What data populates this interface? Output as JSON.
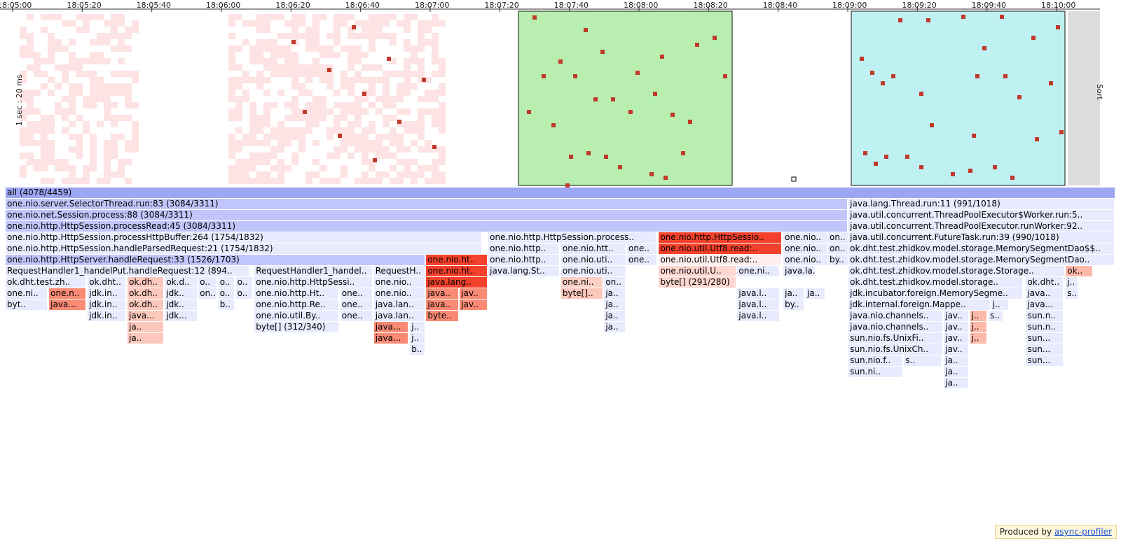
{
  "timeline": {
    "ticks": [
      {
        "label": "18:05:00",
        "t": 0
      },
      {
        "label": "18:05:20",
        "t": 20
      },
      {
        "label": "18:05:40",
        "t": 40
      },
      {
        "label": "18:06:00",
        "t": 60
      },
      {
        "label": "18:06:20",
        "t": 80
      },
      {
        "label": "18:06:40",
        "t": 100
      },
      {
        "label": "18:07:00",
        "t": 120
      },
      {
        "label": "18:07:20",
        "t": 140
      },
      {
        "label": "18:07:40",
        "t": 160
      },
      {
        "label": "18:08:00",
        "t": 180
      },
      {
        "label": "18:08:20",
        "t": 200
      },
      {
        "label": "18:08:40",
        "t": 220
      },
      {
        "label": "18:09:00",
        "t": 240
      },
      {
        "label": "18:09:20",
        "t": 260
      },
      {
        "label": "18:09:40",
        "t": 280
      },
      {
        "label": "18:10:00",
        "t": 300
      }
    ],
    "y_axis_label": "1 sec : 20 ms",
    "right_label": "Sort",
    "colors": {
      "pink_bg": "#fde3e3",
      "green_bg": "#b8eeb0",
      "cyan_bg": "#bff0f2",
      "gray_bg": "#dddddd",
      "hotspot": "#c0392b"
    }
  },
  "flame_rows": [
    [
      {
        "label": "all (4078/4459)",
        "s": 0,
        "w": 4459,
        "c": "#9da6f2"
      }
    ],
    [
      {
        "label": "one.nio.server.SelectorThread.run:83 (3084/3311)",
        "s": 0,
        "w": 3385,
        "c": "#c0c6fb"
      },
      {
        "label": "java.lang.Thread.run:11 (991/1018)",
        "s": 3387,
        "w": 1068,
        "c": "#e8ebfd"
      }
    ],
    [
      {
        "label": "one.nio.net.Session.process:88 (3084/3311)",
        "s": 0,
        "w": 3385,
        "c": "#c0c6fb"
      },
      {
        "label": "java.util.concurrent.ThreadPoolExecutor$Worker.run:5..",
        "s": 3387,
        "w": 1068,
        "c": "#e8ebfd"
      }
    ],
    [
      {
        "label": "one.nio.http.HttpSession.processRead:45 (3084/3311)",
        "s": 0,
        "w": 3385,
        "c": "#c0c6fb"
      },
      {
        "label": "java.util.concurrent.ThreadPoolExecutor.runWorker:92..",
        "s": 3387,
        "w": 1068,
        "c": "#e8ebfd"
      }
    ],
    [
      {
        "label": "one.nio.http.HttpSession.processHttpBuffer:264 (1754/1832)",
        "s": 0,
        "w": 1915,
        "c": "#e8ebfd"
      },
      {
        "label": "one.nio.http.HttpSession.process..",
        "s": 1940,
        "w": 675,
        "c": "#e8ebfd"
      },
      {
        "label": "one.nio.http.HttpSessio..",
        "s": 2625,
        "w": 494,
        "c": "#f4412b"
      },
      {
        "label": "one.nio..",
        "s": 3125,
        "w": 180,
        "c": "#e8ebfd"
      },
      {
        "label": "on..",
        "s": 3305,
        "w": 82,
        "c": "#e8ebfd"
      },
      {
        "label": "java.util.concurrent.FutureTask.run:39 (990/1018)",
        "s": 3387,
        "w": 1068,
        "c": "#e8ebfd"
      }
    ],
    [
      {
        "label": "one.nio.http.HttpSession.handleParsedRequest:21 (1754/1832)",
        "s": 0,
        "w": 1915,
        "c": "#e8ebfd"
      },
      {
        "label": "one.nio.http..",
        "s": 1940,
        "w": 288,
        "c": "#e8ebfd"
      },
      {
        "label": "one.nio.htt..",
        "s": 2232,
        "w": 262,
        "c": "#e8ebfd"
      },
      {
        "label": "one..",
        "s": 2497,
        "w": 121,
        "c": "#e8ebfd"
      },
      {
        "label": "one.nio.util.Utf8.read:..",
        "s": 2625,
        "w": 494,
        "c": "#f4412b"
      },
      {
        "label": "one.nio..",
        "s": 3125,
        "w": 180,
        "c": "#e8ebfd"
      },
      {
        "label": "on..",
        "s": 3305,
        "w": 82,
        "c": "#e8ebfd"
      },
      {
        "label": "ok.dht.test.zhidkov.model.storage.MemorySegmentDao$$..",
        "s": 3387,
        "w": 1068,
        "c": "#e8ebfd"
      }
    ],
    [
      {
        "label": "one.nio.http.HttpServer.handleRequest:33 (1526/1703)",
        "s": 0,
        "w": 1685,
        "c": "#c0c6fb"
      },
      {
        "label": "one.nio.ht..",
        "s": 1690,
        "w": 248,
        "c": "#f4412b"
      },
      {
        "label": "one.nio.http..",
        "s": 1940,
        "w": 288,
        "c": "#e8ebfd"
      },
      {
        "label": "one.nio.uti..",
        "s": 2232,
        "w": 262,
        "c": "#e8ebfd"
      },
      {
        "label": "one..",
        "s": 2497,
        "w": 121,
        "c": "#e8ebfd"
      },
      {
        "label": "one.nio.util.Utf8.read:..",
        "s": 2625,
        "w": 494,
        "c": "#fdeeee"
      },
      {
        "label": "one.nio..",
        "s": 3125,
        "w": 180,
        "c": "#e8ebfd"
      },
      {
        "label": "by..",
        "s": 3305,
        "w": 82,
        "c": "#e8ebfd"
      },
      {
        "label": "ok.dht.test.zhidkov.model.storage.MemorySegmentDao..",
        "s": 3387,
        "w": 1068,
        "c": "#e8ebfd"
      }
    ],
    [
      {
        "label": "RequestHandler1_handelPut.handleRequest:12 (894..",
        "s": 0,
        "w": 980,
        "c": "#e8ebfd"
      },
      {
        "label": "RequestHandler1_handel..",
        "s": 1000,
        "w": 475,
        "c": "#e8ebfd"
      },
      {
        "label": "RequestH..",
        "s": 1480,
        "w": 205,
        "c": "#e8ebfd"
      },
      {
        "label": "one.nio.ht..",
        "s": 1690,
        "w": 248,
        "c": "#f4412b"
      },
      {
        "label": "java.lang.St..",
        "s": 1940,
        "w": 288,
        "c": "#e8ebfd"
      },
      {
        "label": "one.nio.uti..",
        "s": 2232,
        "w": 262,
        "c": "#e8ebfd"
      },
      {
        "label": "one.nio.util.U..",
        "s": 2625,
        "w": 310,
        "c": "#fdd7d0"
      },
      {
        "label": "one.ni..",
        "s": 2940,
        "w": 172,
        "c": "#e8ebfd"
      },
      {
        "label": "java.la..",
        "s": 3125,
        "w": 130,
        "c": "#e8ebfd"
      },
      {
        "label": "ok.dht.test.zhidkov.model.storage.Storage..",
        "s": 3387,
        "w": 870,
        "c": "#e8ebfd"
      },
      {
        "label": "ok..",
        "s": 4260,
        "w": 110,
        "c": "#fcb8a8"
      }
    ],
    [
      {
        "label": "ok.dht.test.zh..",
        "s": 0,
        "w": 325,
        "c": "#e8ebfd"
      },
      {
        "label": "ok.dht..",
        "s": 330,
        "w": 155,
        "c": "#e8ebfd"
      },
      {
        "label": "ok.dh..",
        "s": 490,
        "w": 145,
        "c": "#fdc8bc"
      },
      {
        "label": "ok.d..",
        "s": 640,
        "w": 130,
        "c": "#e8ebfd"
      },
      {
        "label": "o..",
        "s": 775,
        "w": 75,
        "c": "#e8ebfd"
      },
      {
        "label": "o..",
        "s": 855,
        "w": 65,
        "c": "#e8ebfd"
      },
      {
        "label": "o..",
        "s": 925,
        "w": 70,
        "c": "#e8ebfd"
      },
      {
        "label": "one.nio.http.HttpSessi..",
        "s": 1000,
        "w": 475,
        "c": "#e8ebfd"
      },
      {
        "label": "one.nio..",
        "s": 1480,
        "w": 205,
        "c": "#e8ebfd"
      },
      {
        "label": "java.lang..",
        "s": 1690,
        "w": 248,
        "c": "#f4412b"
      },
      {
        "label": "one.ni..",
        "s": 2232,
        "w": 170,
        "c": "#fcd0c4"
      },
      {
        "label": "on..",
        "s": 2405,
        "w": 85,
        "c": "#e8ebfd"
      },
      {
        "label": "byte[] (291/280)",
        "s": 2625,
        "w": 310,
        "c": "#fdd7d0"
      },
      {
        "label": "ok.dht.test.zhidkov.model.storage..",
        "s": 3387,
        "w": 700,
        "c": "#e8ebfd"
      },
      {
        "label": "ok.dht..",
        "s": 4100,
        "w": 150,
        "c": "#e8ebfd"
      },
      {
        "label": "j..",
        "s": 4260,
        "w": 50,
        "c": "#e8ebfd"
      }
    ],
    [
      {
        "label": "one.ni..",
        "s": 0,
        "w": 170,
        "c": "#e8ebfd"
      },
      {
        "label": "one.n..",
        "s": 175,
        "w": 150,
        "c": "#fa8a74"
      },
      {
        "label": "jdk.in..",
        "s": 330,
        "w": 155,
        "c": "#e8ebfd"
      },
      {
        "label": "ok.dh..",
        "s": 490,
        "w": 145,
        "c": "#fdc8bc"
      },
      {
        "label": "jdk..",
        "s": 640,
        "w": 130,
        "c": "#e8ebfd"
      },
      {
        "label": "on..",
        "s": 775,
        "w": 75,
        "c": "#e8ebfd"
      },
      {
        "label": "o..",
        "s": 855,
        "w": 65,
        "c": "#e8ebfd"
      },
      {
        "label": "o..",
        "s": 925,
        "w": 70,
        "c": "#e8ebfd"
      },
      {
        "label": "one.nio.http.Ht..",
        "s": 1000,
        "w": 340,
        "c": "#e8ebfd"
      },
      {
        "label": "one..",
        "s": 1345,
        "w": 130,
        "c": "#e8ebfd"
      },
      {
        "label": "one.nio..",
        "s": 1480,
        "w": 205,
        "c": "#e8ebfd"
      },
      {
        "label": "java..",
        "s": 1690,
        "w": 130,
        "c": "#fa8a74"
      },
      {
        "label": "jav..",
        "s": 1825,
        "w": 113,
        "c": "#fa8a74"
      },
      {
        "label": "byte[]..",
        "s": 2232,
        "w": 170,
        "c": "#fdc8bc"
      },
      {
        "label": "ja..",
        "s": 2405,
        "w": 85,
        "c": "#e8ebfd"
      },
      {
        "label": "java.l..",
        "s": 2940,
        "w": 172,
        "c": "#e8ebfd"
      },
      {
        "label": "ja..",
        "s": 3125,
        "w": 85,
        "c": "#e8ebfd"
      },
      {
        "label": "ja..",
        "s": 3215,
        "w": 80,
        "c": "#e8ebfd"
      },
      {
        "label": "jdk.incubator.foreign.MemorySegme..",
        "s": 3387,
        "w": 700,
        "c": "#e8ebfd"
      },
      {
        "label": "java..",
        "s": 4100,
        "w": 150,
        "c": "#e8ebfd"
      },
      {
        "label": "s..",
        "s": 4260,
        "w": 50,
        "c": "#e8ebfd"
      }
    ],
    [
      {
        "label": "byt..",
        "s": 0,
        "w": 170,
        "c": "#e8ebfd"
      },
      {
        "label": "java...",
        "s": 175,
        "w": 150,
        "c": "#fa8a74"
      },
      {
        "label": "jdk.in..",
        "s": 330,
        "w": 155,
        "c": "#e8ebfd"
      },
      {
        "label": "ok.dh..",
        "s": 490,
        "w": 145,
        "c": "#fdc8bc"
      },
      {
        "label": "jdk..",
        "s": 640,
        "w": 130,
        "c": "#e8ebfd"
      },
      {
        "label": "b..",
        "s": 855,
        "w": 65,
        "c": "#e8ebfd"
      },
      {
        "label": "one.nio.http.Re..",
        "s": 1000,
        "w": 340,
        "c": "#e8ebfd"
      },
      {
        "label": "one..",
        "s": 1345,
        "w": 130,
        "c": "#e8ebfd"
      },
      {
        "label": "java.lan..",
        "s": 1480,
        "w": 205,
        "c": "#e8ebfd"
      },
      {
        "label": "java..",
        "s": 1690,
        "w": 130,
        "c": "#fa8a74"
      },
      {
        "label": "jav..",
        "s": 1825,
        "w": 113,
        "c": "#fa8a74"
      },
      {
        "label": "ja..",
        "s": 2405,
        "w": 85,
        "c": "#e8ebfd"
      },
      {
        "label": "java.l..",
        "s": 2940,
        "w": 172,
        "c": "#e8ebfd"
      },
      {
        "label": "by..",
        "s": 3125,
        "w": 85,
        "c": "#e8ebfd"
      },
      {
        "label": "jdk.internal.foreign.Mappe..",
        "s": 3387,
        "w": 570,
        "c": "#e8ebfd"
      },
      {
        "label": "j..",
        "s": 3960,
        "w": 70,
        "c": "#e8ebfd"
      },
      {
        "label": "java...",
        "s": 4100,
        "w": 150,
        "c": "#e8ebfd"
      }
    ],
    [
      {
        "label": "jdk.in..",
        "s": 330,
        "w": 155,
        "c": "#e8ebfd"
      },
      {
        "label": "java...",
        "s": 490,
        "w": 145,
        "c": "#fdc8bc"
      },
      {
        "label": "jdk...",
        "s": 640,
        "w": 130,
        "c": "#e8ebfd"
      },
      {
        "label": "one.nio.util.By..",
        "s": 1000,
        "w": 340,
        "c": "#e8ebfd"
      },
      {
        "label": "one..",
        "s": 1345,
        "w": 130,
        "c": "#e8ebfd"
      },
      {
        "label": "java.lan..",
        "s": 1480,
        "w": 205,
        "c": "#e8ebfd"
      },
      {
        "label": "byte..",
        "s": 1690,
        "w": 130,
        "c": "#fa8a74"
      },
      {
        "label": "ja..",
        "s": 2405,
        "w": 85,
        "c": "#e8ebfd"
      },
      {
        "label": "java.l..",
        "s": 2940,
        "w": 172,
        "c": "#e8ebfd"
      },
      {
        "label": "java.nio.channels..",
        "s": 3387,
        "w": 380,
        "c": "#e8ebfd"
      },
      {
        "label": "jav..",
        "s": 3770,
        "w": 100,
        "c": "#e8ebfd"
      },
      {
        "label": "j..",
        "s": 3875,
        "w": 70,
        "c": "#fcb8a8"
      },
      {
        "label": "s..",
        "s": 3950,
        "w": 60,
        "c": "#e8ebfd"
      },
      {
        "label": "sun.n..",
        "s": 4100,
        "w": 150,
        "c": "#e8ebfd"
      }
    ],
    [
      {
        "label": "ja..",
        "s": 490,
        "w": 145,
        "c": "#fdc8bc"
      },
      {
        "label": "byte[] (312/340)",
        "s": 1000,
        "w": 340,
        "c": "#e8ebfd"
      },
      {
        "label": "java...",
        "s": 1480,
        "w": 140,
        "c": "#fa8a74"
      },
      {
        "label": "j..",
        "s": 1625,
        "w": 60,
        "c": "#e8ebfd"
      },
      {
        "label": "ja..",
        "s": 2405,
        "w": 85,
        "c": "#e8ebfd"
      },
      {
        "label": "java.nio.channels..",
        "s": 3387,
        "w": 380,
        "c": "#e8ebfd"
      },
      {
        "label": "jav..",
        "s": 3770,
        "w": 100,
        "c": "#e8ebfd"
      },
      {
        "label": "j..",
        "s": 3875,
        "w": 70,
        "c": "#fcb8a8"
      },
      {
        "label": "sun.n..",
        "s": 4100,
        "w": 150,
        "c": "#e8ebfd"
      }
    ],
    [
      {
        "label": "ja..",
        "s": 490,
        "w": 145,
        "c": "#fdc8bc"
      },
      {
        "label": "java...",
        "s": 1480,
        "w": 140,
        "c": "#fa8a74"
      },
      {
        "label": "j..",
        "s": 1625,
        "w": 60,
        "c": "#e8ebfd"
      },
      {
        "label": "sun.nio.fs.UnixFi..",
        "s": 3387,
        "w": 380,
        "c": "#e8ebfd"
      },
      {
        "label": "jav..",
        "s": 3770,
        "w": 100,
        "c": "#e8ebfd"
      },
      {
        "label": "j..",
        "s": 3875,
        "w": 70,
        "c": "#fcb8a8"
      },
      {
        "label": "sun...",
        "s": 4100,
        "w": 150,
        "c": "#e8ebfd"
      }
    ],
    [
      {
        "label": "b..",
        "s": 1625,
        "w": 60,
        "c": "#e8ebfd"
      },
      {
        "label": "sun.nio.fs.UnixCh..",
        "s": 3387,
        "w": 380,
        "c": "#e8ebfd"
      },
      {
        "label": "jav..",
        "s": 3770,
        "w": 100,
        "c": "#e8ebfd"
      },
      {
        "label": "sun...",
        "s": 4100,
        "w": 150,
        "c": "#e8ebfd"
      }
    ],
    [
      {
        "label": "sun.nio.f..",
        "s": 3387,
        "w": 220,
        "c": "#e8ebfd"
      },
      {
        "label": "s..",
        "s": 3610,
        "w": 150,
        "c": "#e8ebfd"
      },
      {
        "label": "ja..",
        "s": 3770,
        "w": 100,
        "c": "#e8ebfd"
      },
      {
        "label": "sun...",
        "s": 4100,
        "w": 150,
        "c": "#e8ebfd"
      }
    ],
    [
      {
        "label": "sun.ni..",
        "s": 3387,
        "w": 220,
        "c": "#e8ebfd"
      },
      {
        "label": "ja..",
        "s": 3770,
        "w": 100,
        "c": "#e8ebfd"
      }
    ],
    [
      {
        "label": "ja..",
        "s": 3770,
        "w": 100,
        "c": "#e8ebfd"
      }
    ]
  ],
  "footer": {
    "prefix": "Produced by ",
    "link_text": "async-profiler"
  }
}
